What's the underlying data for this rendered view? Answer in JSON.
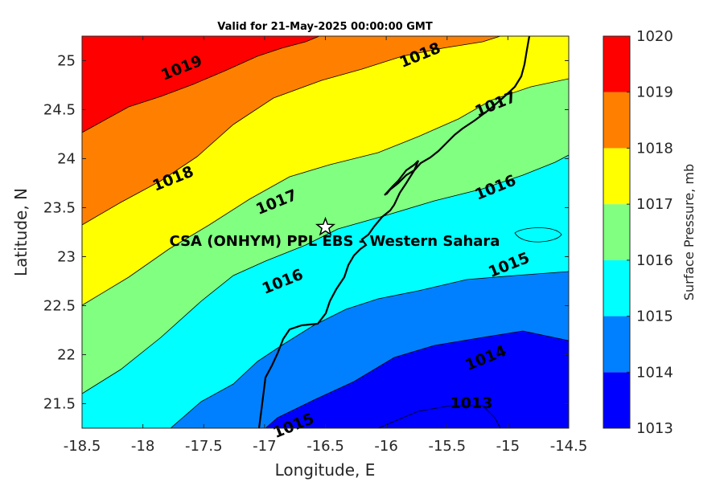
{
  "chart_data": {
    "type": "filled-contour",
    "title": "Valid for 21-May-2025 00:00:00 GMT",
    "xlabel": "Longitude, E",
    "ylabel": "Latitude, N",
    "xlim": [
      -18.5,
      -14.5
    ],
    "ylim": [
      21.25,
      25.25
    ],
    "xticks": [
      "-18.5",
      "-18",
      "-17.5",
      "-17",
      "-16.5",
      "-16",
      "-15.5",
      "-15",
      "-14.5"
    ],
    "yticks": [
      "21.5",
      "22",
      "22.5",
      "23",
      "23.5",
      "24",
      "24.5",
      "25"
    ],
    "colorbar": {
      "label": "Surface Pressure, mb",
      "ticks": [
        "1013",
        "1014",
        "1015",
        "1016",
        "1017",
        "1018",
        "1019",
        "1020"
      ],
      "levels": [
        1013,
        1014,
        1015,
        1016,
        1017,
        1018,
        1019,
        1020
      ],
      "colors": [
        "#0000ff",
        "#0080ff",
        "#00ffff",
        "#80ff80",
        "#ffff00",
        "#ff8000",
        "#ff0000",
        "#800000"
      ]
    },
    "contour_labels": [
      {
        "text": "1019",
        "lon": -17.68,
        "lat": 24.92
      },
      {
        "text": "1018",
        "lon": -15.72,
        "lat": 25.05
      },
      {
        "text": "1017",
        "lon": -15.1,
        "lat": 24.55
      },
      {
        "text": "1018",
        "lon": -17.75,
        "lat": 23.79
      },
      {
        "text": "1017",
        "lon": -16.9,
        "lat": 23.55
      },
      {
        "text": "1016",
        "lon": -15.1,
        "lat": 23.7
      },
      {
        "text": "1016",
        "lon": -16.85,
        "lat": 22.74
      },
      {
        "text": "1015",
        "lon": -14.99,
        "lat": 22.91
      },
      {
        "text": "1015",
        "lon": -16.76,
        "lat": 21.27
      },
      {
        "text": "1014",
        "lon": -15.18,
        "lat": 21.96
      },
      {
        "text": "1013",
        "lon": -15.3,
        "lat": 21.5
      }
    ],
    "site": {
      "name": "CSA (ONHYM) PPL EBS  - Western Sahara",
      "lon": -16.5,
      "lat": 23.3,
      "marker": "star"
    }
  }
}
